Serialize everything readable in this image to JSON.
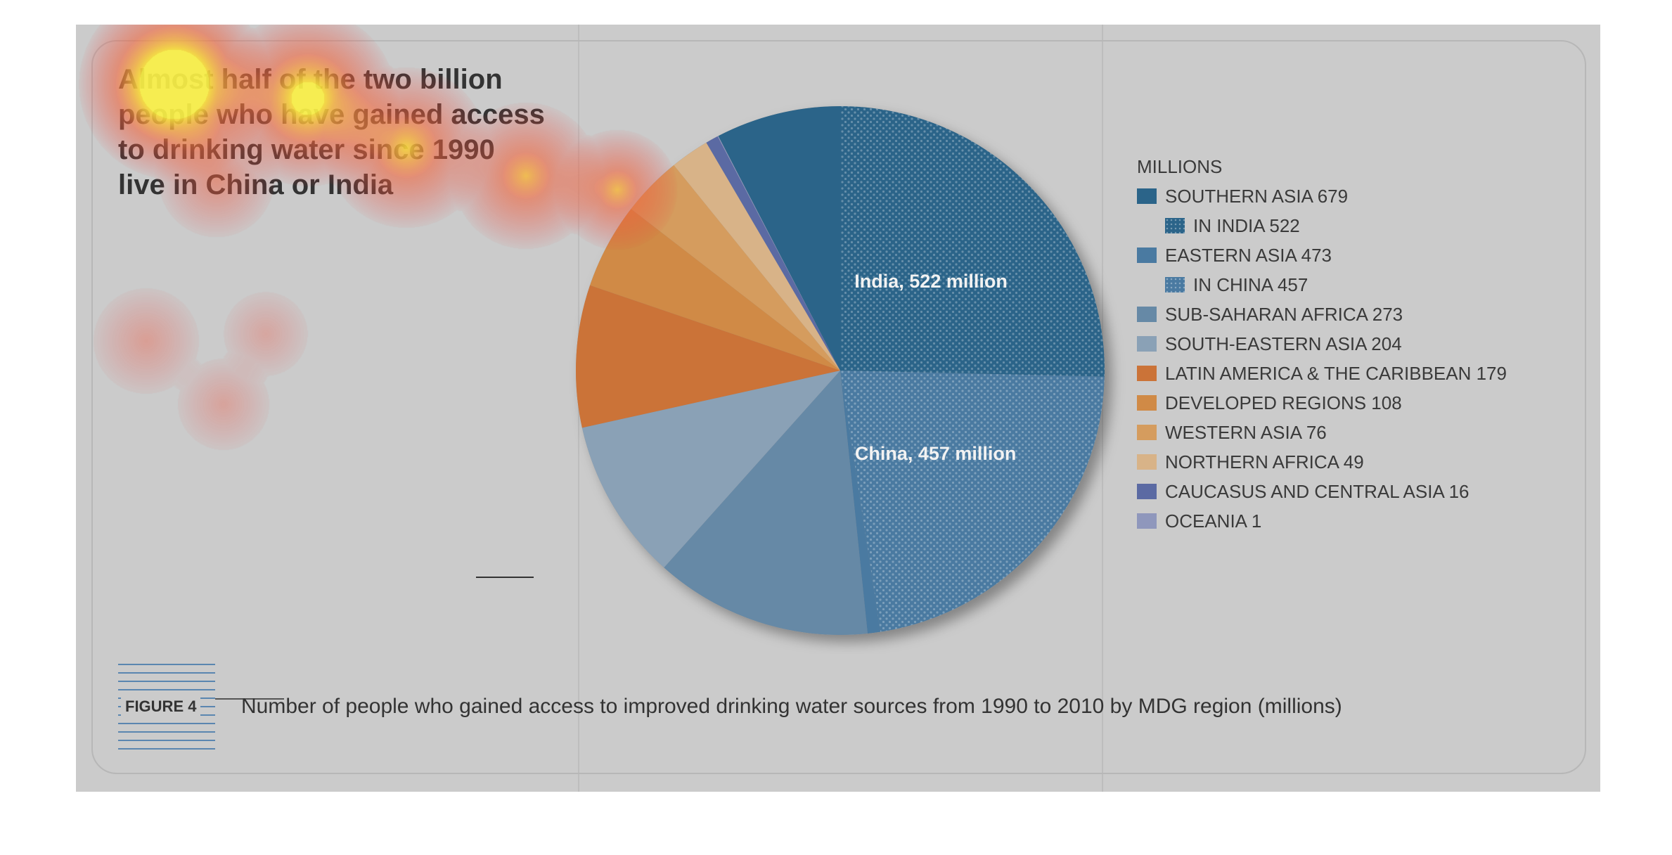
{
  "headline": [
    "Almost half of the two billion",
    "people who have gained access",
    "to drinking water since 1990",
    "live in China or India"
  ],
  "figure": {
    "label": "FIGURE 4",
    "caption": "Number of people who gained access to improved drinking water sources from 1990 to 2010 by MDG region (millions)"
  },
  "chart_data": {
    "type": "pie",
    "unit_label": "MILLIONS",
    "slices": [
      {
        "label": "SOUTHERN ASIA 679",
        "name": "SOUTHERN ASIA",
        "value": 679,
        "color": "#2b6489",
        "pattern": false
      },
      {
        "label": "IN INDIA 522",
        "name": "IN INDIA",
        "value": 522,
        "color": "#2b6489",
        "pattern": true,
        "indent": true,
        "slice_label": "India, 522 million"
      },
      {
        "label": "EASTERN ASIA 473",
        "name": "EASTERN ASIA",
        "value": 473,
        "color": "#4a7aa1",
        "pattern": false
      },
      {
        "label": "IN CHINA 457",
        "name": "IN CHINA",
        "value": 457,
        "color": "#4a7aa1",
        "pattern": true,
        "indent": true,
        "slice_label": "China, 457 million"
      },
      {
        "label": "SUB-SAHARAN AFRICA 273",
        "name": "SUB-SAHARAN AFRICA",
        "value": 273,
        "color": "#6689a6",
        "pattern": false
      },
      {
        "label": "SOUTH-EASTERN ASIA 204",
        "name": "SOUTH-EASTERN ASIA",
        "value": 204,
        "color": "#8aa1b6",
        "pattern": false
      },
      {
        "label": "LATIN AMERICA & THE CARIBBEAN 179",
        "name": "LATIN AMERICA & THE CARIBBEAN",
        "value": 179,
        "color": "#cb7338",
        "pattern": false
      },
      {
        "label": "DEVELOPED REGIONS 108",
        "name": "DEVELOPED REGIONS",
        "value": 108,
        "color": "#d08a46",
        "pattern": false
      },
      {
        "label": "WESTERN ASIA 76",
        "name": "WESTERN ASIA",
        "value": 76,
        "color": "#d59c5e",
        "pattern": false
      },
      {
        "label": "NORTHERN AFRICA 49",
        "name": "NORTHERN AFRICA",
        "value": 49,
        "color": "#d8b388",
        "pattern": false
      },
      {
        "label": "CAUCASUS AND CENTRAL ASIA 16",
        "name": "CAUCASUS AND CENTRAL ASIA",
        "value": 16,
        "color": "#5b6aa3",
        "pattern": false
      },
      {
        "label": "OCEANIA 1",
        "name": "OCEANIA",
        "value": 1,
        "color": "#8f97bc",
        "pattern": false
      }
    ]
  }
}
